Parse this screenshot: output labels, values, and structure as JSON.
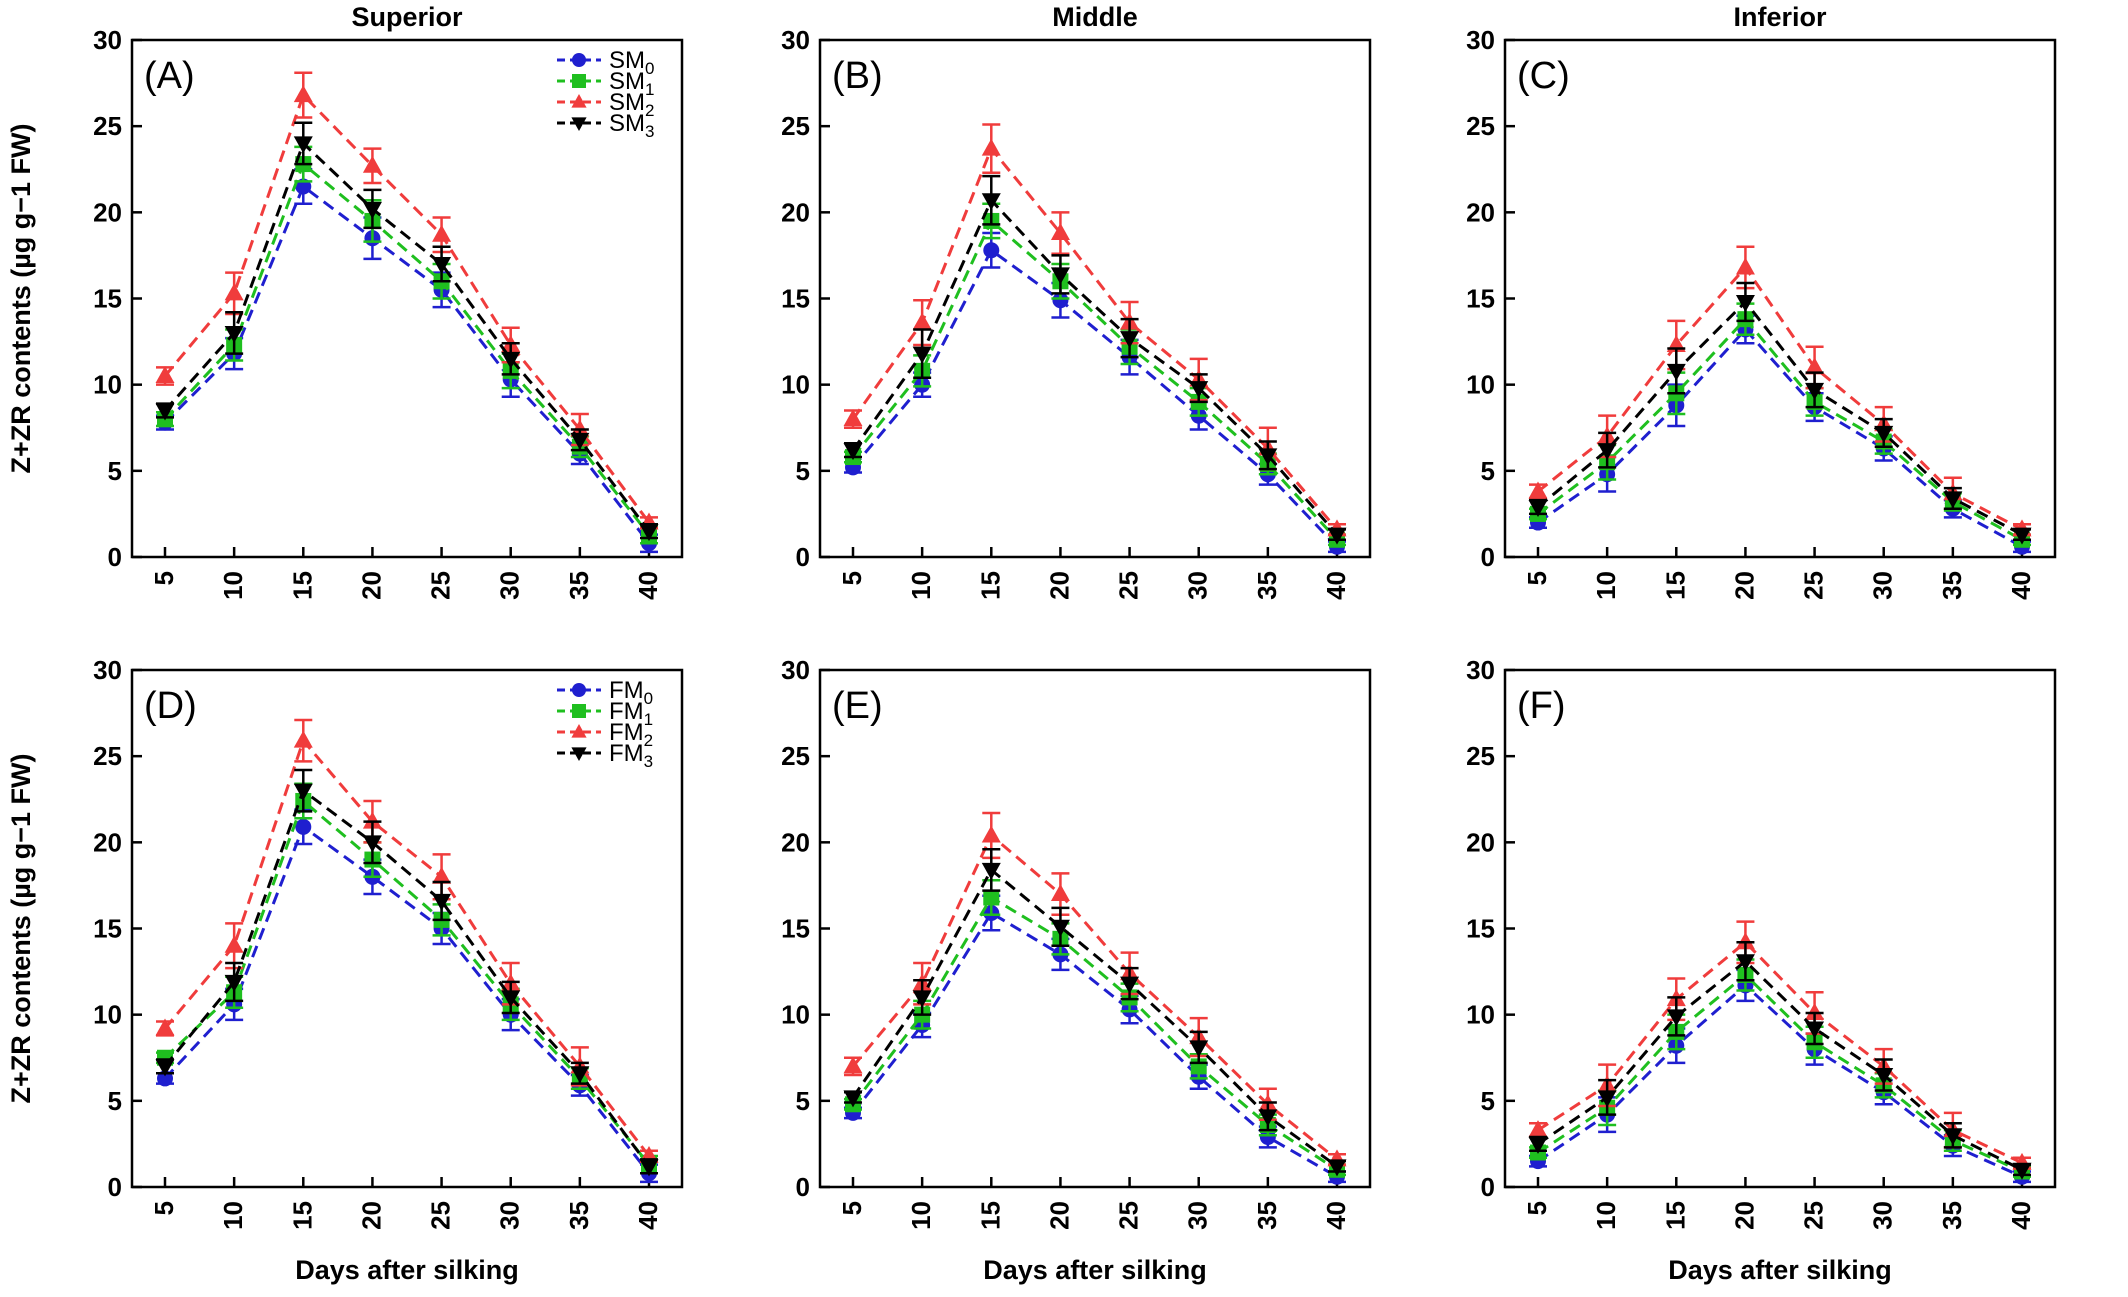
{
  "figure": {
    "ylabel": "Z+ZR contents (µg g−1 FW)",
    "xlabel": "Days after silking",
    "column_titles": [
      "Superior",
      "Middle",
      "Inferior"
    ]
  },
  "chart_data": [
    {
      "panel": "(A)",
      "type": "line",
      "title": "Superior",
      "x": [
        5,
        10,
        15,
        20,
        25,
        30,
        35,
        40
      ],
      "ylim": [
        0,
        30
      ],
      "ylabel": "Z+ZR contents (µg g−1 FW)",
      "xlabel": "",
      "legend_placement": "top-right",
      "legend": [
        {
          "base": "SM",
          "sub": "0"
        },
        {
          "base": "SM",
          "sub": "1"
        },
        {
          "base": "SM",
          "sub": "2"
        },
        {
          "base": "SM",
          "sub": "3"
        }
      ],
      "series": [
        {
          "name": "SM0",
          "color": "#1f1fcf",
          "marker": "circle",
          "values": [
            7.8,
            11.8,
            21.5,
            18.5,
            15.5,
            10.3,
            6.0,
            0.8
          ],
          "errors": [
            0.4,
            0.9,
            1.0,
            1.2,
            1.0,
            1.0,
            0.6,
            0.5
          ]
        },
        {
          "name": "SM1",
          "color": "#1fbf1f",
          "marker": "square",
          "values": [
            8.0,
            12.3,
            22.8,
            19.5,
            16.0,
            10.8,
            6.4,
            1.3
          ],
          "errors": [
            0.4,
            0.9,
            1.0,
            1.2,
            1.0,
            1.0,
            0.6,
            0.5
          ]
        },
        {
          "name": "SM2",
          "color": "#f03c3c",
          "marker": "triangle-up",
          "values": [
            10.5,
            15.3,
            26.8,
            22.7,
            18.7,
            12.3,
            7.4,
            2.0
          ],
          "errors": [
            0.5,
            1.2,
            1.3,
            1.0,
            1.0,
            1.0,
            0.9,
            0.3
          ]
        },
        {
          "name": "SM3",
          "color": "#000000",
          "marker": "triangle-down",
          "values": [
            8.5,
            13.0,
            24.0,
            20.2,
            17.0,
            11.5,
            6.8,
            1.5
          ],
          "errors": [
            0.4,
            1.2,
            1.2,
            1.1,
            1.0,
            0.9,
            0.6,
            0.4
          ]
        }
      ]
    },
    {
      "panel": "(B)",
      "type": "line",
      "title": "Middle",
      "x": [
        5,
        10,
        15,
        20,
        25,
        30,
        35,
        40
      ],
      "ylim": [
        0,
        30
      ],
      "xlabel": "",
      "series": [
        {
          "name": "SM0",
          "color": "#1f1fcf",
          "marker": "circle",
          "values": [
            5.2,
            10.0,
            17.8,
            14.9,
            11.6,
            8.2,
            4.8,
            0.6
          ],
          "errors": [
            0.3,
            0.7,
            1.0,
            1.0,
            1.0,
            0.8,
            0.6,
            0.3
          ]
        },
        {
          "name": "SM1",
          "color": "#1fbf1f",
          "marker": "square",
          "values": [
            5.8,
            10.8,
            19.5,
            16.0,
            12.2,
            9.0,
            5.4,
            1.0
          ],
          "errors": [
            0.3,
            0.9,
            1.0,
            1.0,
            1.0,
            0.8,
            0.6,
            0.3
          ]
        },
        {
          "name": "SM2",
          "color": "#f03c3c",
          "marker": "triangle-up",
          "values": [
            8.0,
            13.6,
            23.7,
            18.8,
            13.6,
            10.3,
            6.3,
            1.6
          ],
          "errors": [
            0.5,
            1.3,
            1.4,
            1.2,
            1.2,
            1.2,
            1.2,
            0.3
          ]
        },
        {
          "name": "SM3",
          "color": "#000000",
          "marker": "triangle-down",
          "values": [
            6.2,
            11.8,
            20.7,
            16.4,
            12.7,
            9.8,
            5.9,
            1.3
          ],
          "errors": [
            0.4,
            1.4,
            1.4,
            1.1,
            1.1,
            0.8,
            0.8,
            0.3
          ]
        }
      ]
    },
    {
      "panel": "(C)",
      "type": "line",
      "title": "Inferior",
      "x": [
        5,
        10,
        15,
        20,
        25,
        30,
        35,
        40
      ],
      "ylim": [
        0,
        30
      ],
      "xlabel": "",
      "series": [
        {
          "name": "SM0",
          "color": "#1f1fcf",
          "marker": "circle",
          "values": [
            2.0,
            4.8,
            8.8,
            13.2,
            8.7,
            6.3,
            2.8,
            0.6
          ],
          "errors": [
            0.3,
            1.0,
            1.2,
            0.8,
            0.8,
            0.7,
            0.5,
            0.3
          ]
        },
        {
          "name": "SM1",
          "color": "#1fbf1f",
          "marker": "square",
          "values": [
            2.5,
            5.5,
            9.5,
            13.8,
            9.0,
            6.7,
            3.2,
            1.0
          ],
          "errors": [
            0.3,
            1.0,
            1.2,
            0.9,
            0.8,
            0.7,
            0.5,
            0.3
          ]
        },
        {
          "name": "SM2",
          "color": "#f03c3c",
          "marker": "triangle-up",
          "values": [
            3.8,
            7.0,
            12.3,
            16.8,
            11.0,
            7.7,
            3.7,
            1.6
          ],
          "errors": [
            0.4,
            1.2,
            1.4,
            1.2,
            1.2,
            1.0,
            0.9,
            0.3
          ]
        },
        {
          "name": "SM3",
          "color": "#000000",
          "marker": "triangle-down",
          "values": [
            2.9,
            6.2,
            10.8,
            14.8,
            9.7,
            7.2,
            3.4,
            1.3
          ],
          "errors": [
            0.4,
            1.0,
            1.3,
            1.1,
            1.0,
            0.8,
            0.6,
            0.3
          ]
        }
      ]
    },
    {
      "panel": "(D)",
      "type": "line",
      "title": "",
      "x": [
        5,
        10,
        15,
        20,
        25,
        30,
        35,
        40
      ],
      "ylim": [
        0,
        30
      ],
      "ylabel": "Z+ZR contents (µg g−1 FW)",
      "xlabel": "Days after silking",
      "legend_placement": "top-right",
      "legend": [
        {
          "base": "FM",
          "sub": "0"
        },
        {
          "base": "FM",
          "sub": "1"
        },
        {
          "base": "FM",
          "sub": "2"
        },
        {
          "base": "FM",
          "sub": "3"
        }
      ],
      "series": [
        {
          "name": "FM0",
          "color": "#1f1fcf",
          "marker": "circle",
          "values": [
            6.3,
            10.6,
            20.9,
            18.0,
            15.0,
            10.0,
            5.9,
            0.8
          ],
          "errors": [
            0.3,
            0.9,
            1.0,
            1.0,
            0.9,
            0.9,
            0.6,
            0.5
          ]
        },
        {
          "name": "FM1",
          "color": "#1fbf1f",
          "marker": "square",
          "values": [
            7.5,
            11.3,
            22.4,
            19.0,
            15.5,
            10.6,
            6.3,
            1.3
          ],
          "errors": [
            0.3,
            0.9,
            1.0,
            1.0,
            0.9,
            0.9,
            0.6,
            0.5
          ]
        },
        {
          "name": "FM2",
          "color": "#f03c3c",
          "marker": "triangle-up",
          "values": [
            9.2,
            14.0,
            25.9,
            21.2,
            18.0,
            11.8,
            7.0,
            1.8
          ],
          "errors": [
            0.4,
            1.3,
            1.2,
            1.2,
            1.3,
            1.2,
            1.1,
            0.3
          ]
        },
        {
          "name": "FM3",
          "color": "#000000",
          "marker": "triangle-down",
          "values": [
            7.0,
            11.9,
            23.0,
            20.0,
            16.6,
            11.0,
            6.6,
            1.2
          ],
          "errors": [
            0.4,
            1.1,
            1.2,
            1.2,
            1.1,
            0.9,
            0.6,
            0.4
          ]
        }
      ]
    },
    {
      "panel": "(E)",
      "type": "line",
      "title": "",
      "x": [
        5,
        10,
        15,
        20,
        25,
        30,
        35,
        40
      ],
      "ylim": [
        0,
        30
      ],
      "xlabel": "Days after silking",
      "series": [
        {
          "name": "FM0",
          "color": "#1f1fcf",
          "marker": "circle",
          "values": [
            4.3,
            9.4,
            15.9,
            13.5,
            10.3,
            6.4,
            2.9,
            0.6
          ],
          "errors": [
            0.3,
            0.7,
            1.0,
            0.9,
            0.8,
            0.7,
            0.6,
            0.3
          ]
        },
        {
          "name": "FM1",
          "color": "#1fbf1f",
          "marker": "square",
          "values": [
            4.8,
            10.0,
            16.8,
            14.4,
            11.0,
            7.0,
            3.6,
            1.0
          ],
          "errors": [
            0.3,
            0.8,
            1.0,
            0.9,
            0.8,
            0.7,
            0.6,
            0.3
          ]
        },
        {
          "name": "FM2",
          "color": "#f03c3c",
          "marker": "triangle-up",
          "values": [
            7.0,
            11.8,
            20.4,
            17.0,
            12.4,
            8.7,
            4.8,
            1.6
          ],
          "errors": [
            0.5,
            1.2,
            1.3,
            1.2,
            1.2,
            1.1,
            0.9,
            0.3
          ]
        },
        {
          "name": "FM3",
          "color": "#000000",
          "marker": "triangle-down",
          "values": [
            5.2,
            11.0,
            18.4,
            15.1,
            11.8,
            8.1,
            4.1,
            1.2
          ],
          "errors": [
            0.3,
            1.0,
            1.2,
            1.1,
            0.9,
            0.9,
            0.8,
            0.3
          ]
        }
      ]
    },
    {
      "panel": "(F)",
      "type": "line",
      "title": "",
      "x": [
        5,
        10,
        15,
        20,
        25,
        30,
        35,
        40
      ],
      "ylim": [
        0,
        30
      ],
      "xlabel": "Days after silking",
      "series": [
        {
          "name": "FM0",
          "color": "#1f1fcf",
          "marker": "circle",
          "values": [
            1.5,
            4.2,
            8.2,
            11.7,
            8.0,
            5.5,
            2.4,
            0.6
          ],
          "errors": [
            0.3,
            1.0,
            1.0,
            0.9,
            0.9,
            0.7,
            0.6,
            0.3
          ]
        },
        {
          "name": "FM1",
          "color": "#1fbf1f",
          "marker": "square",
          "values": [
            2.0,
            4.6,
            9.0,
            12.3,
            8.4,
            5.9,
            2.7,
            0.9
          ],
          "errors": [
            0.3,
            1.0,
            1.0,
            0.9,
            0.9,
            0.7,
            0.6,
            0.3
          ]
        },
        {
          "name": "FM2",
          "color": "#f03c3c",
          "marker": "triangle-up",
          "values": [
            3.3,
            5.9,
            10.9,
            14.2,
            10.1,
            7.0,
            3.3,
            1.4
          ],
          "errors": [
            0.4,
            1.2,
            1.2,
            1.2,
            1.2,
            1.0,
            1.0,
            0.3
          ]
        },
        {
          "name": "FM3",
          "color": "#000000",
          "marker": "triangle-down",
          "values": [
            2.5,
            5.2,
            9.9,
            13.1,
            9.2,
            6.5,
            3.0,
            1.0
          ],
          "errors": [
            0.4,
            1.0,
            1.1,
            1.1,
            0.9,
            0.9,
            0.7,
            0.3
          ]
        }
      ]
    }
  ]
}
